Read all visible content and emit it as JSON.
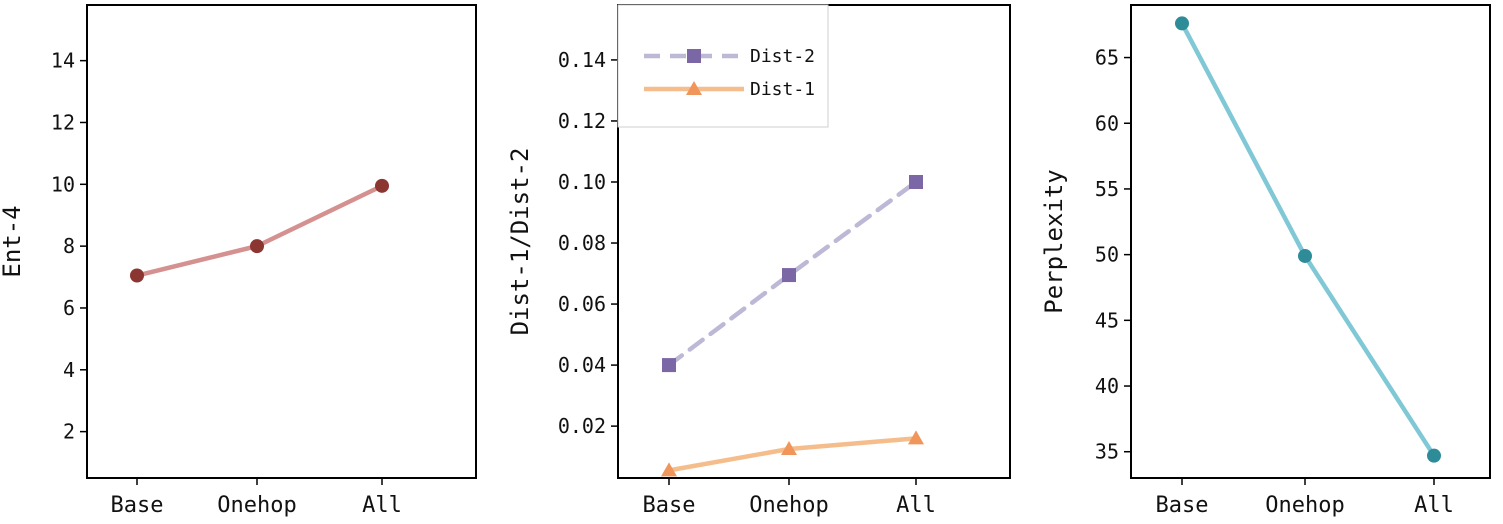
{
  "chart_data": [
    {
      "type": "line",
      "categories": [
        "Base",
        "Onehop",
        "All"
      ],
      "ylabel": "Ent-4",
      "ylim": [
        0.5,
        15.8
      ],
      "yticks": [
        2,
        4,
        6,
        8,
        10,
        12,
        14
      ],
      "yticklabels": [
        "2",
        "4",
        "6",
        "8",
        "10",
        "12",
        "14"
      ],
      "legend": null,
      "series": [
        {
          "values": [
            7.05,
            8.0,
            9.95
          ],
          "line_color": "#d4918f",
          "marker_color": "#8b3631",
          "marker": "circle",
          "dashed": false
        }
      ]
    },
    {
      "type": "line",
      "categories": [
        "Base",
        "Onehop",
        "All"
      ],
      "ylabel": "Dist-1/Dist-2",
      "ylim": [
        0.003,
        0.158
      ],
      "yticks": [
        0.02,
        0.04,
        0.06,
        0.08,
        0.1,
        0.12,
        0.14
      ],
      "yticklabels": [
        "0.02",
        "0.04",
        "0.06",
        "0.08",
        "0.10",
        "0.12",
        "0.14"
      ],
      "legend": "top-left",
      "series": [
        {
          "name": "Dist-2",
          "values": [
            0.04,
            0.0695,
            0.1
          ],
          "line_color": "#bdb8d6",
          "marker_color": "#7b66a6",
          "marker": "square",
          "dashed": true
        },
        {
          "name": "Dist-1",
          "values": [
            0.0055,
            0.0125,
            0.016
          ],
          "line_color": "#f6bd8c",
          "marker_color": "#f0965a",
          "marker": "triangle",
          "dashed": false
        }
      ]
    },
    {
      "type": "line",
      "categories": [
        "Base",
        "Onehop",
        "All"
      ],
      "ylabel": "Perplexity",
      "ylim": [
        33.0,
        69.0
      ],
      "yticks": [
        35,
        40,
        45,
        50,
        55,
        60,
        65
      ],
      "yticklabels": [
        "35",
        "40",
        "45",
        "50",
        "55",
        "60",
        "65"
      ],
      "legend": null,
      "series": [
        {
          "values": [
            67.6,
            49.9,
            34.7
          ],
          "line_color": "#80c8d6",
          "marker_color": "#2e8c99",
          "marker": "circle",
          "dashed": false
        }
      ]
    }
  ]
}
